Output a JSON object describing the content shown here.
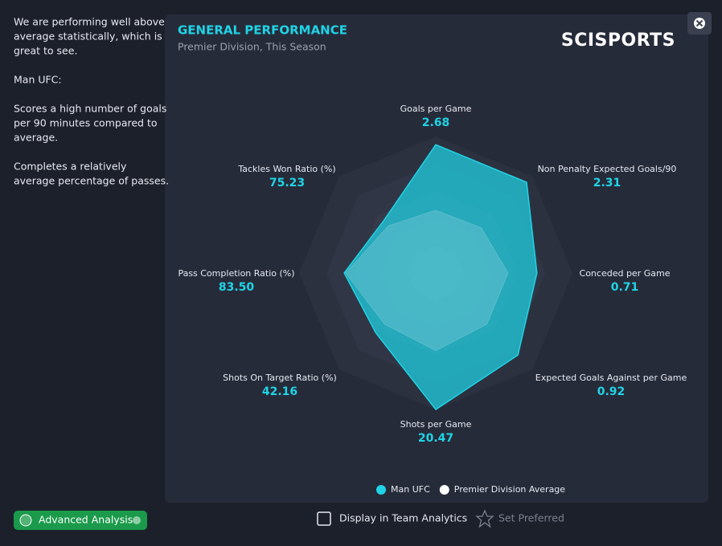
{
  "left_panel": {
    "paragraphs": [
      [
        "We are performing well above",
        "average statistically, which is",
        "great to see."
      ],
      [
        "Man UFC:"
      ],
      [
        "Scores a high number of goals",
        "per 90 minutes compared to",
        "average."
      ],
      [
        "Completes a relatively",
        "average percentage of passes."
      ]
    ]
  },
  "chart_data": {
    "type": "radar",
    "title": "GENERAL PERFORMANCE",
    "subtitle": "Premier Division, This Season",
    "brand": "SCISPORTS",
    "categories": [
      "Goals per Game",
      "Non Penalty Expected Goals/90",
      "Conceded per Game",
      "Expected Goals Against per Game",
      "Shots per Game",
      "Shots On Target Ratio (%)",
      "Pass Completion Ratio (%)",
      "Tackles Won Ratio (%)"
    ],
    "stats": [
      2.68,
      2.31,
      0.71,
      0.92,
      20.47,
      42.16,
      {
        "value": 83.5,
        "label": "83.50"
      },
      75.23
    ],
    "ylim": [
      0,
      100
    ],
    "series": [
      {
        "name": "Man UFC",
        "color": "#1fd4e6",
        "values": [
          94,
          94,
          74,
          85,
          100,
          62,
          67,
          54
        ]
      },
      {
        "name": "Premier Division Average",
        "color": "#ffffff",
        "values": [
          46,
          47,
          53,
          53,
          57,
          53,
          66,
          49
        ]
      }
    ]
  },
  "footer": {
    "advanced": "Advanced Analysis",
    "display": "Display in Team Analytics",
    "preferred": "Set Preferred"
  }
}
